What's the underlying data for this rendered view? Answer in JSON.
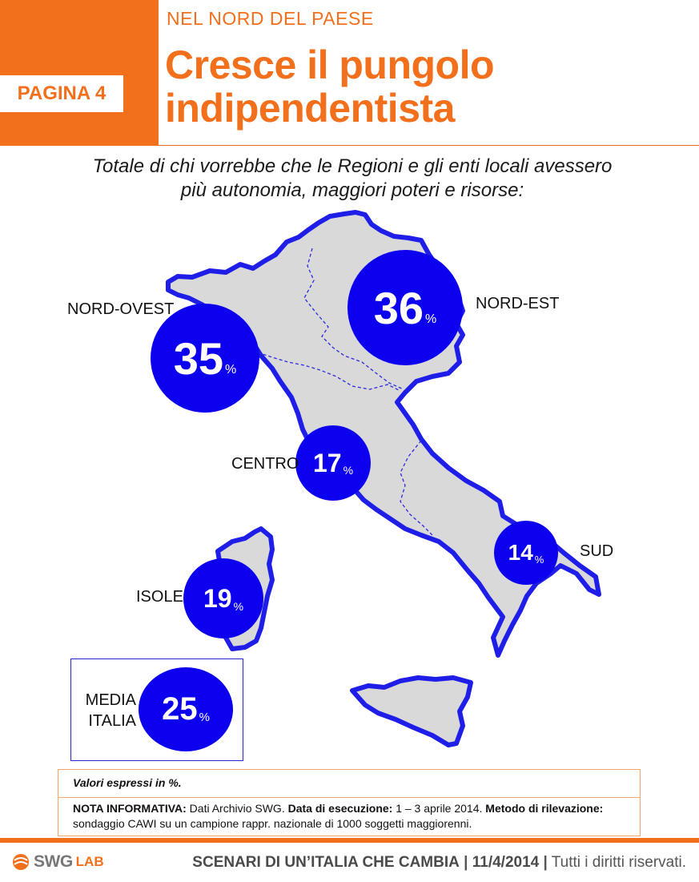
{
  "header": {
    "page_label": "PAGINA 4",
    "kicker": "NEL NORD DEL PAESE",
    "title_line1": "Cresce il pungolo",
    "title_line2": "indipendentista"
  },
  "subtitle": {
    "line1": "Totale di chi vorrebbe che le Regioni e gli enti locali avessero",
    "line2": "più autonomia, maggiori poteri e risorse:"
  },
  "colors": {
    "accent": "#f26f1b",
    "bubble": "#0d00ef",
    "map_fill": "#d9d9d9",
    "map_stroke": "#1e1ee8"
  },
  "regions": [
    {
      "name": "NORD-OVEST",
      "value": "35",
      "unit": "%"
    },
    {
      "name": "NORD-EST",
      "value": "36",
      "unit": "%"
    },
    {
      "name": "CENTRO",
      "value": "17",
      "unit": "%"
    },
    {
      "name": "SUD",
      "value": "14",
      "unit": "%"
    },
    {
      "name": "ISOLE",
      "value": "19",
      "unit": "%"
    }
  ],
  "average": {
    "label_line1": "MEDIA",
    "label_line2": "ITALIA",
    "value": "25",
    "unit": "%"
  },
  "notes": {
    "values_note": "Valori espressi in %.",
    "nota_label": "NOTA INFORMATIVA:",
    "nota_text": " Dati Archivio SWG. ",
    "data_label": "Data di esecuzione:",
    "data_text": " 1 – 3 aprile 2014. ",
    "metodo_label": "Metodo di rilevazione:",
    "metodo_text": " sondaggio CAWI su un campione rappr. nazionale di 1000 soggetti maggiorenni."
  },
  "footer": {
    "logo_text": "SWG",
    "logo_lab": "LAB",
    "series": "SCENARI DI UN’ITALIA CHE CAMBIA",
    "date": "11/4/2014",
    "rights": "Tutti i diritti riservati.",
    "separator": "|"
  }
}
